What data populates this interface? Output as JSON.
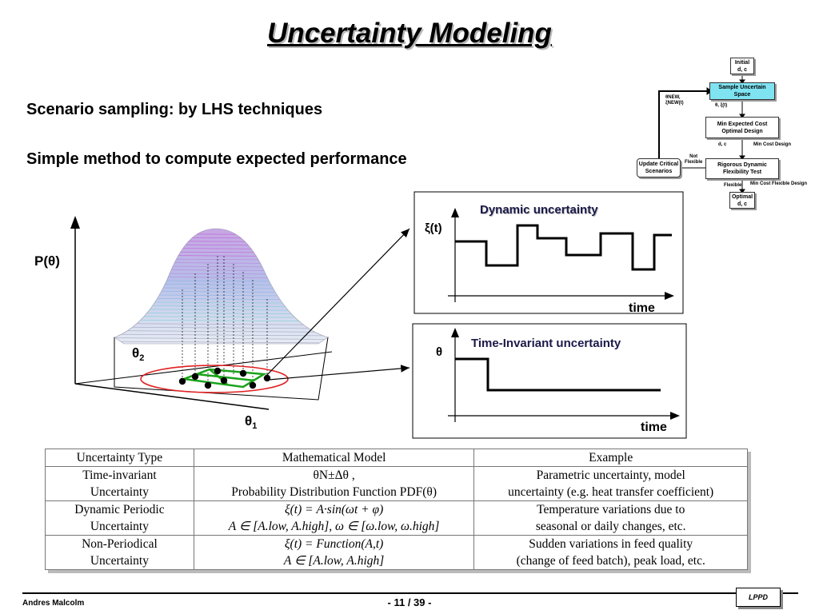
{
  "slide": {
    "title": "Uncertainty Modeling",
    "bullets": [
      "Scenario sampling: by LHS techniques",
      "Simple method to compute expected performance"
    ]
  },
  "surface_plot": {
    "ylabel": "P(θ)",
    "theta2": "θ",
    "theta2_sub": "2",
    "theta1": "θ",
    "theta1_sub": "1"
  },
  "dynamic_box": {
    "title": "Dynamic uncertainty",
    "ylabel": "ξ(t)",
    "xlabel": "time"
  },
  "invariant_box": {
    "title": "Time-Invariant uncertainty",
    "ylabel": "θ",
    "xlabel": "time"
  },
  "flowchart": {
    "initial": [
      "Initial",
      "d, c"
    ],
    "sample": [
      "Sample Uncertain",
      "Space"
    ],
    "label_theta_xi": "θ, ξ(t)",
    "label_new": [
      "θNEW,",
      "ξNEW(t)"
    ],
    "min_expected": [
      "Min Expected Cost",
      "Optimal Design"
    ],
    "label_dc": "d, c",
    "label_min_cost": "Min Cost  Design",
    "rigorous": [
      "Rigorous Dynamic",
      "Flexibility Test"
    ],
    "label_not_flexible": [
      "Not",
      "Flexible"
    ],
    "update": [
      "Update Critical",
      "Scenarios"
    ],
    "label_flexible": "Flexible",
    "label_min_cost_flex": "Min Cost Flexible Design",
    "optimal": [
      "Optimal",
      "d, c"
    ]
  },
  "table": {
    "headers": [
      "Uncertainty Type",
      "Mathematical Model",
      "Example"
    ],
    "rows": [
      {
        "type": [
          "Time-invariant",
          "Uncertainty"
        ],
        "model": [
          "θN±Δθ ,",
          "Probability Distribution Function PDF(θ)"
        ],
        "example": [
          "Parametric uncertainty, model",
          "uncertainty (e.g. heat transfer coefficient)"
        ]
      },
      {
        "type": [
          "Dynamic Periodic",
          "Uncertainty"
        ],
        "model": [
          "ξ(t) = A·sin(ωt + φ)",
          "A ∈ [A.low, A.high], ω ∈ [ω.low, ω.high]"
        ],
        "example": [
          "Temperature variations due to",
          "seasonal or daily changes, etc."
        ]
      },
      {
        "type": [
          "Non-Periodical",
          "Uncertainty"
        ],
        "model": [
          "ξ(t) = Function(A,t)",
          "A ∈ [A.low, A.high]"
        ],
        "example": [
          "Sudden variations in feed quality",
          "(change of feed batch), peak load, etc."
        ]
      }
    ]
  },
  "footer": {
    "author": "Andres Malcolm",
    "page": "- 11 / 39 -",
    "logo": "LPPD"
  }
}
